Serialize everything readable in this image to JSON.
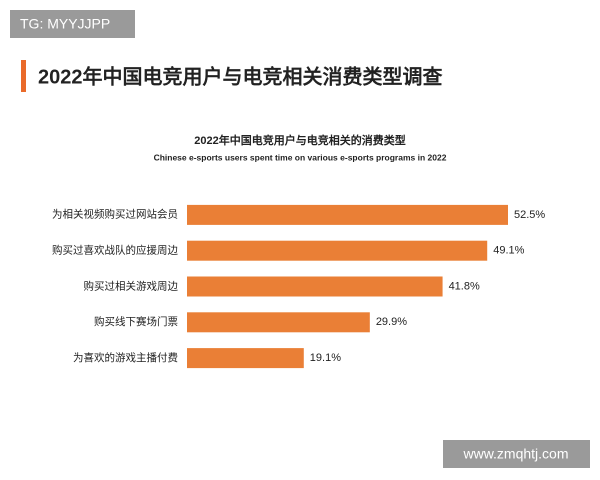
{
  "watermark_top": "TG: MYYJJPP",
  "header": {
    "title": "2022年中国电竞用户与电竞相关消费类型调查"
  },
  "watermark_bottom": "www.zmqhtj.com",
  "chart_data": {
    "type": "bar",
    "orientation": "horizontal",
    "title": "2022年中国电竞用户与电竞相关的消费类型",
    "subtitle": "Chinese e-sports users spent time on various e-sports programs in 2022",
    "categories": [
      "为相关视频购买过网站会员",
      "购买过喜欢战队的应援周边",
      "购买过相关游戏周边",
      "购买线下赛场门票",
      "为喜欢的游戏主播付费"
    ],
    "values": [
      52.5,
      49.1,
      41.8,
      29.9,
      19.1
    ],
    "value_labels": [
      "52.5%",
      "49.1%",
      "41.8%",
      "29.9%",
      "19.1%"
    ],
    "color": "#ea7f36"
  }
}
